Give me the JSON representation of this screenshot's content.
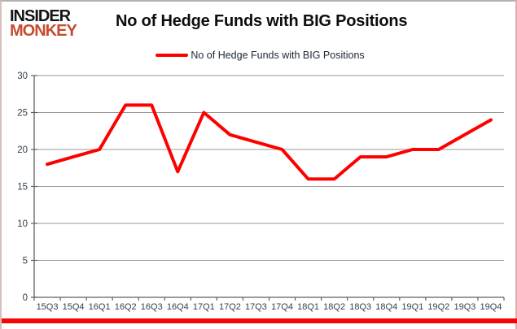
{
  "logo": {
    "line1": "INSIDER",
    "line2": "MONKEY"
  },
  "header": {
    "title": "No of Hedge Funds with BIG Positions"
  },
  "legend": {
    "label": "No of Hedge Funds with BIG Positions"
  },
  "colors": {
    "series_red": "#fe0000",
    "gridline": "#999999",
    "axis": "#5f5f5f",
    "tick_label": "#33414f",
    "bottom_bar": "#f60505",
    "logo_red": "#c74b2e"
  },
  "chart_data": {
    "type": "line",
    "title": "No of Hedge Funds with BIG Positions",
    "categories": [
      "15Q3",
      "15Q4",
      "16Q1",
      "16Q2",
      "16Q3",
      "16Q4",
      "17Q1",
      "17Q2",
      "17Q3",
      "17Q4",
      "18Q1",
      "18Q2",
      "18Q3",
      "18Q4",
      "19Q1",
      "19Q2",
      "19Q3",
      "19Q4"
    ],
    "series": [
      {
        "name": "No of Hedge Funds with BIG Positions",
        "color": "#fe0000",
        "values": [
          18,
          19,
          20,
          26,
          26,
          17,
          25,
          22,
          21,
          20,
          16,
          16,
          19,
          19,
          20,
          20,
          22,
          24
        ]
      }
    ],
    "xlabel": "",
    "ylabel": "",
    "ylim": [
      0,
      30
    ],
    "yticks": [
      0,
      5,
      10,
      15,
      20,
      25,
      30
    ],
    "grid": true,
    "legend_position": "top"
  }
}
